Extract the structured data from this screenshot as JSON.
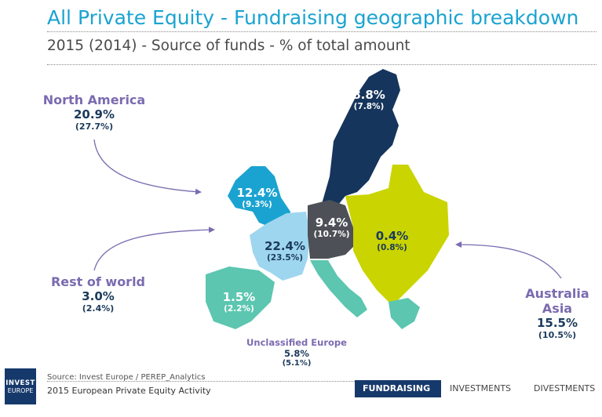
{
  "header": {
    "title": "All Private Equity - Fundraising geographic breakdown",
    "subtitle": "2015 (2014) - Source of funds - % of total amount"
  },
  "external_regions": [
    {
      "name": "North America",
      "value": "20.9%",
      "prev": "(27.7%)"
    },
    {
      "name": "Rest of world",
      "value": "3.0%",
      "prev": "(2.4%)"
    },
    {
      "name": "Australia Asia",
      "name_line1": "Australia",
      "name_line2": "Asia",
      "value": "15.5%",
      "prev": "(10.5%)"
    },
    {
      "name": "Unclassified Europe",
      "value": "5.8%",
      "prev": "(5.1%)"
    }
  ],
  "map_regions": [
    {
      "id": "nordics",
      "value": "8.8%",
      "prev": "(7.8%)",
      "color": "#16355c"
    },
    {
      "id": "uk-ireland",
      "value": "12.4%",
      "prev": "(9.3%)",
      "color": "#1aa3d1"
    },
    {
      "id": "dach",
      "value": "9.4%",
      "prev": "(10.7%)",
      "color": "#4d5157"
    },
    {
      "id": "france-benelux",
      "value": "22.4%",
      "prev": "(23.5%)",
      "color": "#9fd6ef"
    },
    {
      "id": "cee",
      "value": "0.4%",
      "prev": "(0.8%)",
      "color": "#c9d400"
    },
    {
      "id": "southern-europe",
      "value": "1.5%",
      "prev": "(2.2%)",
      "color": "#5cc6b0"
    }
  ],
  "colors": {
    "title": "#1aa3d1",
    "region_label": "#7b6bb0",
    "navy": "#16396b",
    "arrow": "#7b6bb0",
    "italy": "#5cc6b0"
  },
  "footer": {
    "source": "Source: Invest Europe / PEREP_Analytics",
    "publication": "2015 European Private Equity Activity",
    "logo_line1": "INVEST",
    "logo_line2": "EUROPE",
    "tabs": [
      "FUNDRAISING",
      "INVESTMENTS",
      "DIVESTMENTS"
    ],
    "active_tab": "FUNDRAISING"
  }
}
